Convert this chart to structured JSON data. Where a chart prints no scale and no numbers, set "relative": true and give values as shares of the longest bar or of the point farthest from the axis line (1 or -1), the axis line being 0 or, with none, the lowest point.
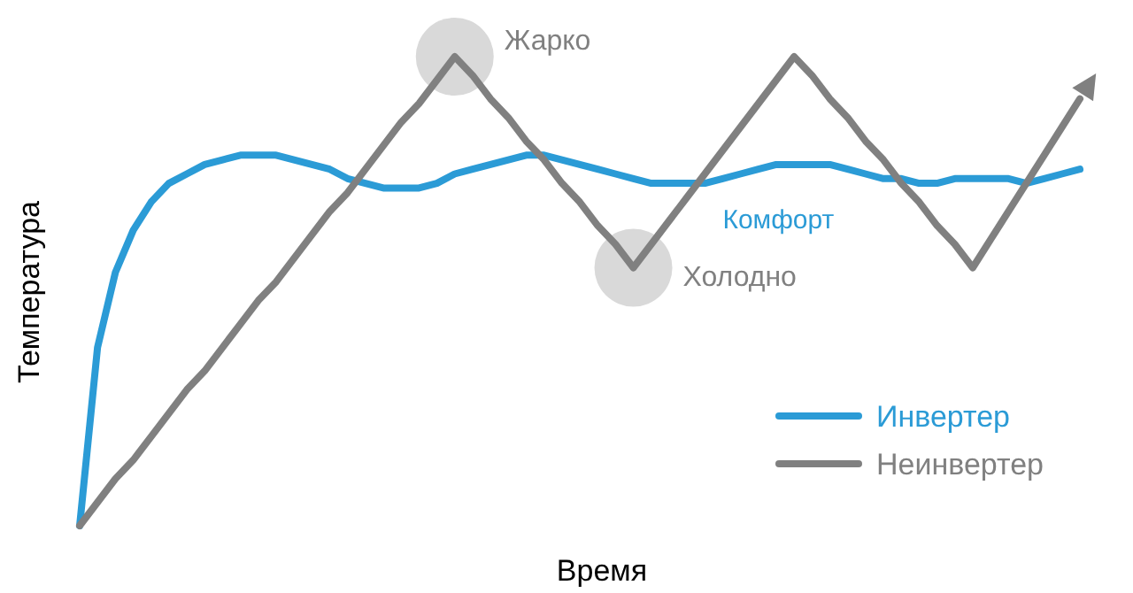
{
  "chart_data": {
    "type": "line",
    "relative": true,
    "xlabel": "Время",
    "ylabel": "Температура",
    "legend": "bottom right",
    "categories": [
      null,
      null,
      null,
      null,
      null,
      null,
      null,
      null,
      null,
      null,
      null,
      null,
      null,
      null,
      null,
      null,
      null,
      null,
      null,
      null,
      null,
      null,
      null,
      null,
      null,
      null,
      null,
      null,
      null,
      null,
      null,
      null,
      null,
      null,
      null,
      null,
      null,
      null,
      null,
      null,
      null,
      null,
      null,
      null,
      null,
      null,
      null,
      null,
      null,
      null,
      null,
      null,
      null,
      null,
      null,
      null,
      null
    ],
    "series": [
      {
        "name": "Инвертер",
        "color": "#2b9bd6",
        "values": [
          0,
          0.38,
          0.54,
          0.63,
          0.69,
          0.73,
          0.75,
          0.77,
          0.78,
          0.79,
          0.79,
          0.79,
          0.78,
          0.77,
          0.76,
          0.74,
          0.73,
          0.72,
          0.72,
          0.72,
          0.73,
          0.75,
          0.76,
          0.77,
          0.78,
          0.79,
          0.79,
          0.78,
          0.77,
          0.76,
          0.75,
          0.74,
          0.73,
          0.73,
          0.73,
          0.73,
          0.74,
          0.75,
          0.76,
          0.77,
          0.77,
          0.77,
          0.77,
          0.76,
          0.75,
          0.74,
          0.74,
          0.73,
          0.73,
          0.74,
          0.74,
          0.74,
          0.74,
          0.73,
          0.74,
          0.75,
          0.76
        ]
      },
      {
        "name": "Неинвертер",
        "color": "#808080",
        "values": [
          0,
          0.05,
          0.1,
          0.14,
          0.19,
          0.24,
          0.29,
          0.33,
          0.38,
          0.43,
          0.48,
          0.52,
          0.57,
          0.62,
          0.67,
          0.71,
          0.76,
          0.81,
          0.86,
          0.9,
          0.95,
          1,
          0.96,
          0.91,
          0.87,
          0.82,
          0.78,
          0.73,
          0.69,
          0.64,
          0.6,
          0.55,
          0.6,
          0.65,
          0.7,
          0.75,
          0.8,
          0.85,
          0.9,
          0.95,
          1,
          0.96,
          0.91,
          0.87,
          0.82,
          0.78,
          0.73,
          0.69,
          0.64,
          0.6,
          0.55,
          0.61,
          0.67,
          0.73,
          0.79,
          0.85,
          0.91
        ]
      }
    ],
    "annotations": [
      "Жарко",
      "Холодно",
      "Комфорт"
    ]
  }
}
